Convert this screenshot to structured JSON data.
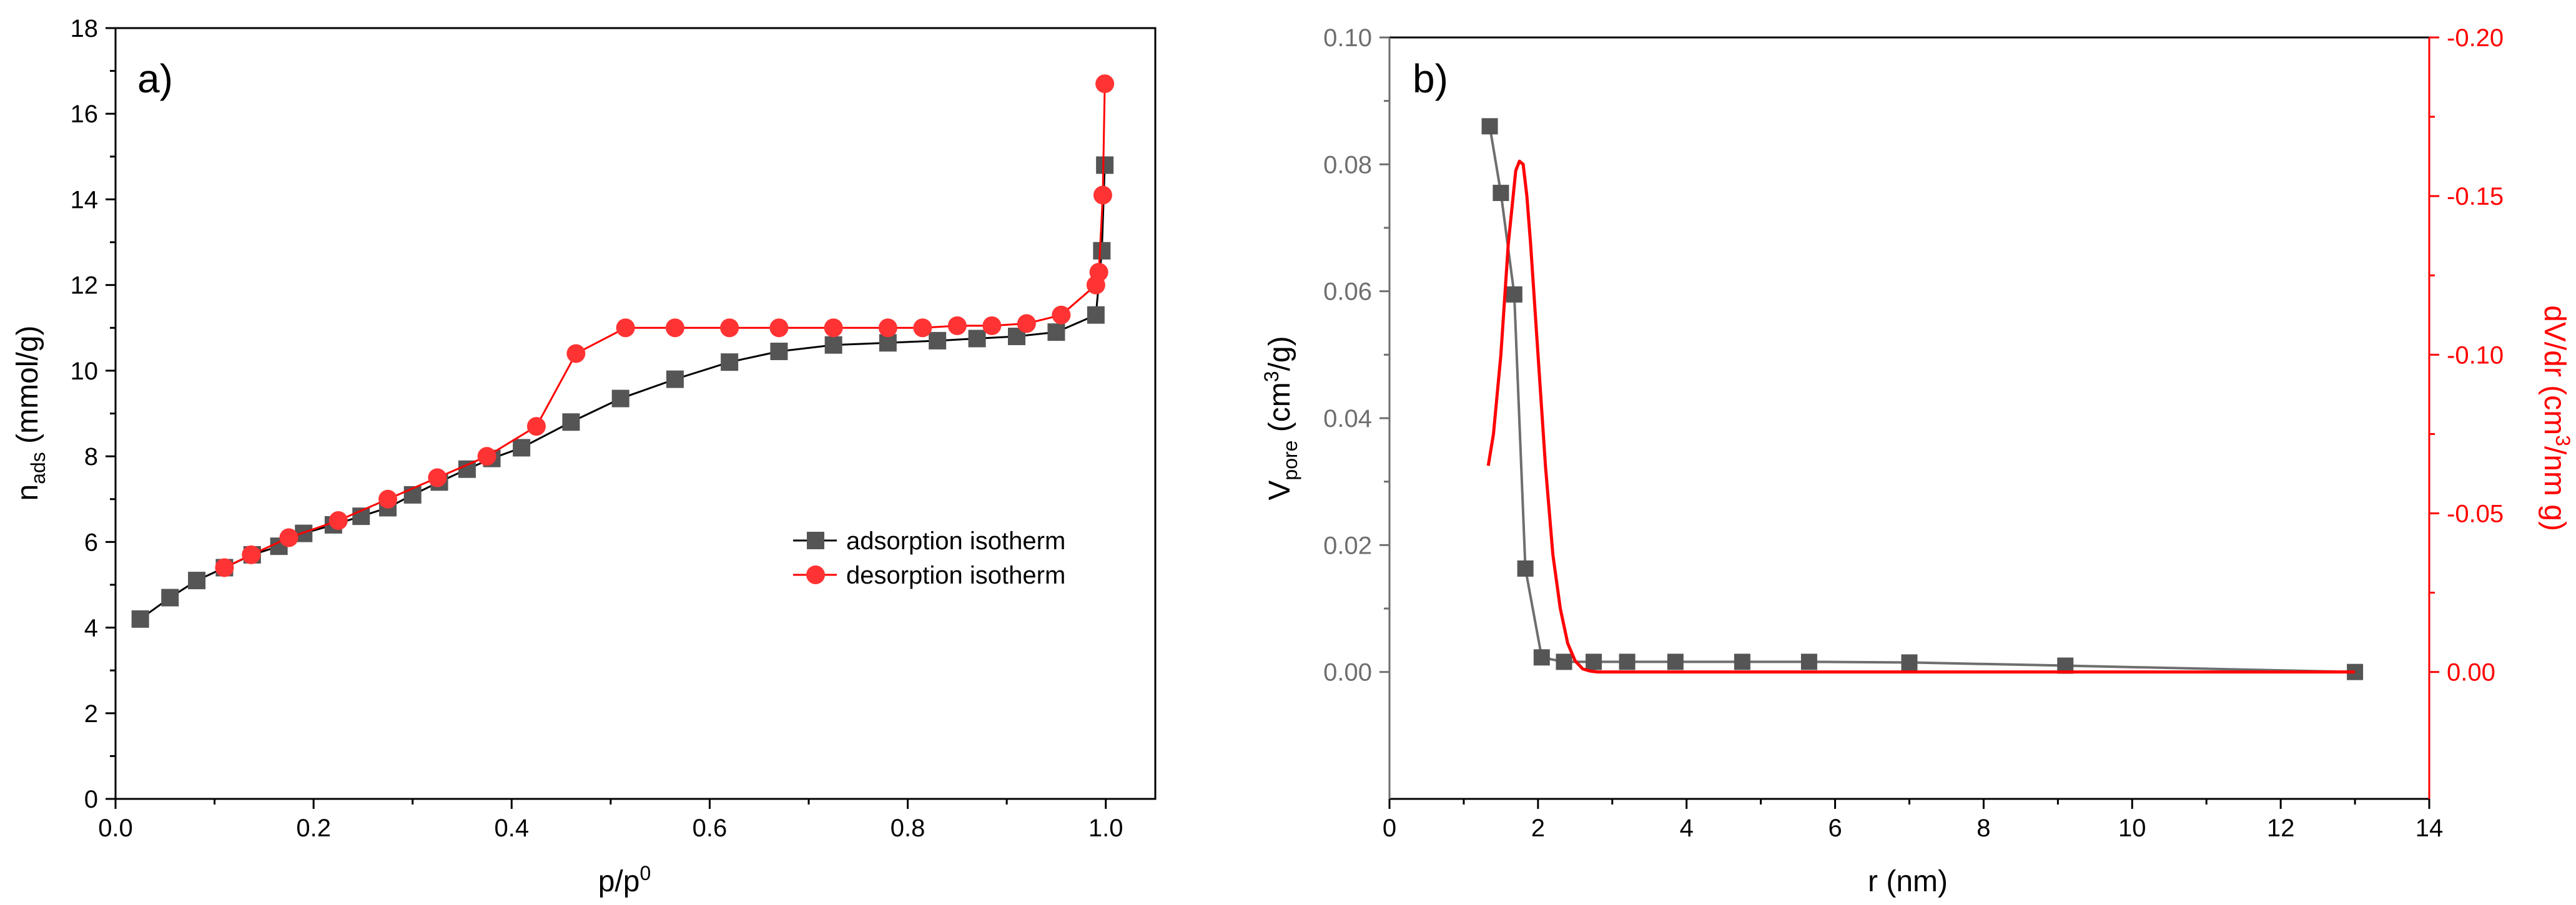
{
  "chart_data": [
    {
      "type": "scatter",
      "panel_label": "a)",
      "xlabel": {
        "main": "p/p",
        "sup": "0"
      },
      "ylabel": {
        "main": "n",
        "sub": "ads",
        "unit": " (mmol/g)"
      },
      "xlim": [
        0,
        1.05
      ],
      "ylim": [
        0,
        18
      ],
      "xticks": [
        "0.0",
        "0.2",
        "0.4",
        "0.6",
        "0.8",
        "1.0"
      ],
      "xtick_values": [
        0,
        0.2,
        0.4,
        0.6,
        0.8,
        1.0
      ],
      "yticks": [
        "0",
        "2",
        "4",
        "6",
        "8",
        "10",
        "12",
        "14",
        "16",
        "18"
      ],
      "ytick_values": [
        0,
        2,
        4,
        6,
        8,
        10,
        12,
        14,
        16,
        18
      ],
      "legend": [
        "adsorption isotherm",
        "desorption isotherm"
      ],
      "legend_position": "bottom-right",
      "series": [
        {
          "name": "adsorption isotherm",
          "color": "#555555",
          "line_color": "#000000",
          "marker": "square",
          "x": [
            0.025,
            0.055,
            0.082,
            0.11,
            0.138,
            0.165,
            0.19,
            0.22,
            0.248,
            0.275,
            0.3,
            0.327,
            0.355,
            0.38,
            0.41,
            0.46,
            0.51,
            0.565,
            0.62,
            0.67,
            0.725,
            0.78,
            0.83,
            0.87,
            0.91,
            0.95,
            0.99,
            0.996,
            0.999
          ],
          "y": [
            4.2,
            4.7,
            5.1,
            5.4,
            5.7,
            5.9,
            6.2,
            6.4,
            6.6,
            6.8,
            7.1,
            7.4,
            7.7,
            7.95,
            8.2,
            8.8,
            9.35,
            9.8,
            10.2,
            10.45,
            10.6,
            10.65,
            10.7,
            10.75,
            10.8,
            10.9,
            11.3,
            12.8,
            14.8
          ]
        },
        {
          "name": "desorption isotherm",
          "color": "#ff3333",
          "line_color": "#ff0000",
          "marker": "circle",
          "x": [
            0.999,
            0.997,
            0.993,
            0.99,
            0.955,
            0.92,
            0.885,
            0.85,
            0.815,
            0.78,
            0.725,
            0.67,
            0.62,
            0.565,
            0.515,
            0.465,
            0.425,
            0.375,
            0.325,
            0.275,
            0.225,
            0.175,
            0.137,
            0.11
          ],
          "y": [
            16.7,
            14.1,
            12.3,
            12.0,
            11.3,
            11.1,
            11.05,
            11.05,
            11.0,
            11.0,
            11.0,
            11.0,
            11.0,
            11.0,
            11.0,
            10.4,
            8.7,
            8.0,
            7.5,
            7.0,
            6.5,
            6.1,
            5.7,
            5.4
          ]
        }
      ]
    },
    {
      "type": "line",
      "panel_label": "b)",
      "xlabel": "r (nm)",
      "ylabel_left": {
        "main": "V",
        "sub": "pore",
        "unit_pre": " (cm",
        "unit_sup": "3",
        "unit_post": "/g)"
      },
      "ylabel_right": {
        "pre": "dV/dr (cm",
        "sup": "3",
        "post": "/nm g)"
      },
      "xlim": [
        0,
        14
      ],
      "ylim_left": [
        -0.02,
        0.1
      ],
      "ylim_right": [
        0.04,
        -0.2
      ],
      "xticks": [
        "0",
        "2",
        "4",
        "6",
        "8",
        "10",
        "12",
        "14"
      ],
      "xtick_values": [
        0,
        2,
        4,
        6,
        8,
        10,
        12,
        14
      ],
      "yticks_left": [
        "0.00",
        "0.02",
        "0.04",
        "0.06",
        "0.08",
        "0.10"
      ],
      "ytick_values_left": [
        0,
        0.02,
        0.04,
        0.06,
        0.08,
        0.1
      ],
      "yticks_right": [
        "0.00",
        "-0.05",
        "-0.10",
        "-0.15",
        "-0.20"
      ],
      "ytick_values_right": [
        0,
        -0.05,
        -0.1,
        -0.15,
        -0.2
      ],
      "series": [
        {
          "name": "V_pore",
          "axis": "left",
          "color": "#555555",
          "line_color": "#6e6e6e",
          "marker": "square",
          "x": [
            1.35,
            1.5,
            1.68,
            1.83,
            2.05,
            2.35,
            2.75,
            3.2,
            3.85,
            4.75,
            5.65,
            7.0,
            9.1,
            13.0
          ],
          "y": [
            0.086,
            0.0755,
            0.0595,
            0.0163,
            0.0023,
            0.0016,
            0.0016,
            0.0016,
            0.0016,
            0.0016,
            0.0016,
            0.0015,
            0.001,
            0.0
          ]
        },
        {
          "name": "dV/dr",
          "axis": "right",
          "color": "#ff0000",
          "marker": "none",
          "x": [
            1.33,
            1.4,
            1.5,
            1.6,
            1.7,
            1.75,
            1.8,
            1.85,
            1.9,
            2.0,
            2.1,
            2.2,
            2.3,
            2.4,
            2.5,
            2.6,
            2.7,
            2.8,
            3.0,
            4.0,
            6.0,
            8.0,
            10.0,
            12.0,
            13.0
          ],
          "y": [
            -0.065,
            -0.075,
            -0.1,
            -0.135,
            -0.158,
            -0.161,
            -0.16,
            -0.15,
            -0.135,
            -0.1,
            -0.065,
            -0.037,
            -0.02,
            -0.009,
            -0.0035,
            -0.001,
            -0.0003,
            0.0,
            0.0,
            0.0,
            0.0,
            0.0,
            0.0,
            0.0,
            0.0
          ]
        }
      ]
    }
  ]
}
